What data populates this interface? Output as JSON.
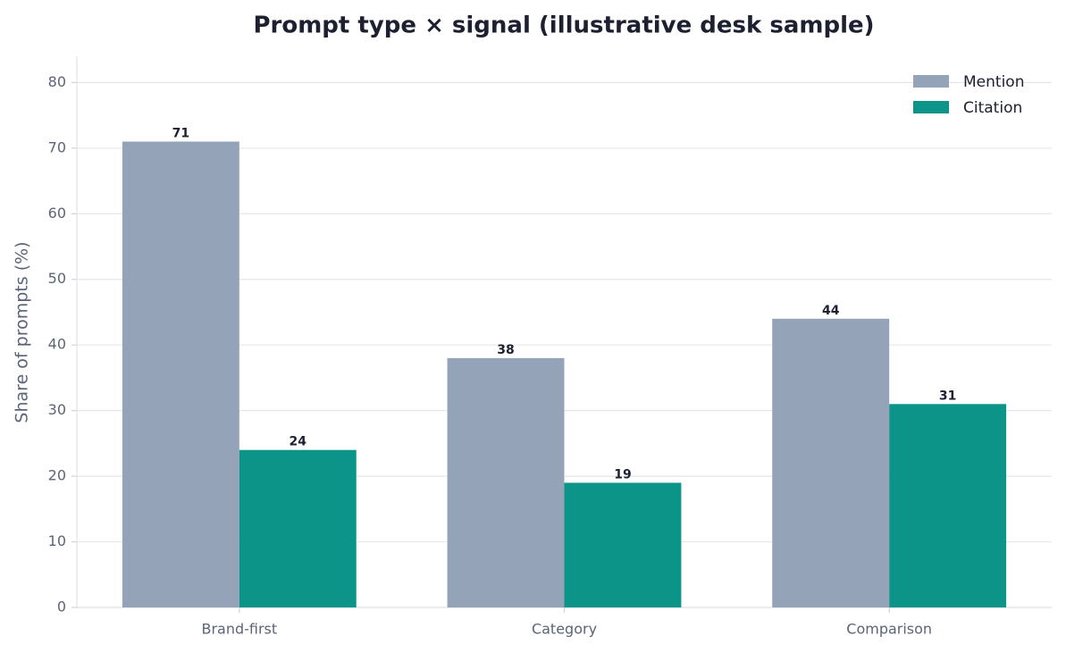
{
  "chart_data": {
    "type": "bar",
    "title": "Prompt type × signal (illustrative desk sample)",
    "ylabel": "Share of prompts (%)",
    "categories": [
      "Brand-first",
      "Category",
      "Comparison"
    ],
    "series": [
      {
        "name": "Mention",
        "color": "#94a3b8",
        "values": [
          71,
          38,
          44
        ]
      },
      {
        "name": "Citation",
        "color": "#0d9488",
        "values": [
          24,
          19,
          31
        ]
      }
    ],
    "ylim": [
      0,
      84
    ],
    "yticks": [
      0,
      10,
      20,
      30,
      40,
      50,
      60,
      70,
      80
    ],
    "grid": true,
    "legend": "upper-right"
  }
}
